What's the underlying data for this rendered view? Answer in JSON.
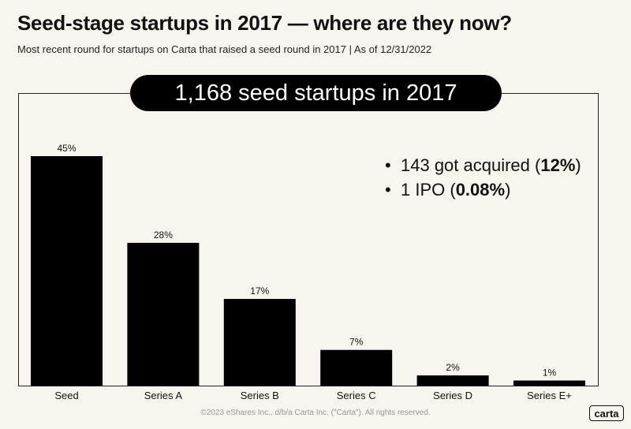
{
  "header": {
    "title": "Seed-stage startups in 2017 — where are they now?",
    "subtitle": "Most recent round for startups on Carta that raised a seed round in 2017 | As of 12/31/2022"
  },
  "banner": {
    "text": "1,168 seed startups in 2017"
  },
  "callouts": [
    {
      "text": "143 got acquired (",
      "value": "12%",
      "suffix": ")"
    },
    {
      "text": "1 IPO (",
      "value": "0.08%",
      "suffix": ")"
    }
  ],
  "chart_data": {
    "type": "bar",
    "title": "",
    "xlabel": "",
    "ylabel": "",
    "categories": [
      "Seed",
      "Series A",
      "Series B",
      "Series C",
      "Series D",
      "Series E+"
    ],
    "values": [
      45,
      28,
      17,
      7,
      2,
      1
    ],
    "labels": [
      "45%",
      "28%",
      "17%",
      "7%",
      "2%",
      "1%"
    ],
    "ylim": [
      0,
      50
    ],
    "grid": false,
    "bar_color": "#000000"
  },
  "footer": {
    "copyright": "©2023 eShares Inc., d/b/a Carta Inc. (\"Carta\"). All rights reserved.",
    "logo": "carta"
  }
}
